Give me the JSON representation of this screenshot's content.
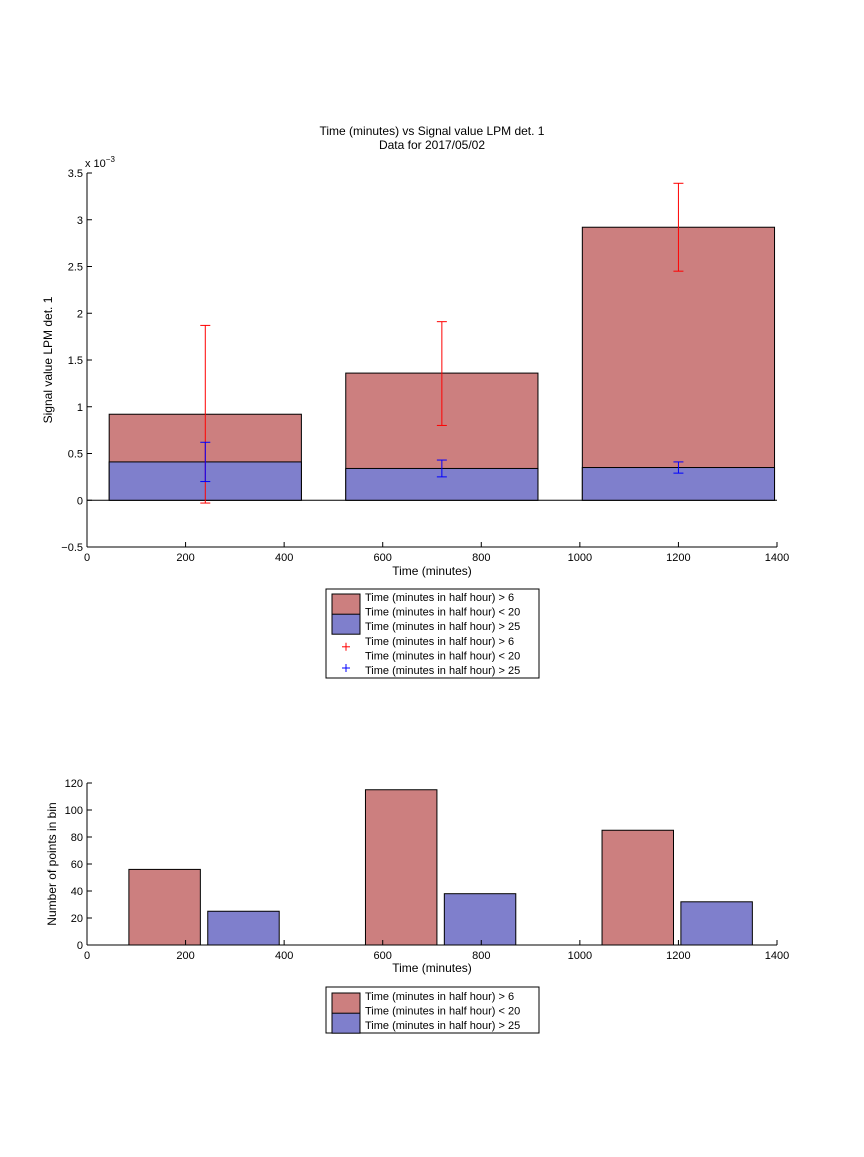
{
  "chart_data": [
    {
      "type": "bar",
      "title": "Time (minutes) vs Signal value LPM det. 1",
      "subtitle": "Data for 2017/05/02",
      "xlabel": "Time (minutes)",
      "ylabel": "Signal value LPM det. 1",
      "exponent_label": "x 10",
      "exponent_power": "−3",
      "xlim": [
        0,
        1400
      ],
      "ylim": [
        -0.5,
        3.5
      ],
      "y_scale_factor": 0.001,
      "xticks": [
        0,
        200,
        400,
        600,
        800,
        1000,
        1200,
        1400
      ],
      "yticks": [
        -0.5,
        0,
        0.5,
        1,
        1.5,
        2,
        2.5,
        3,
        3.5
      ],
      "ytick_labels": [
        "−0.5",
        "0",
        "0.5",
        "1",
        "1.5",
        "2",
        "2.5",
        "3",
        "3.5"
      ],
      "bins": [
        {
          "x_start": 45,
          "x_end": 435
        },
        {
          "x_start": 525,
          "x_end": 915
        },
        {
          "x_start": 1005,
          "x_end": 1395
        }
      ],
      "series": [
        {
          "name": "Time (minutes in half hour) > 6\nTime (minutes in half hour) < 20",
          "color": "#cc7f7f",
          "values": [
            0.92,
            1.36,
            2.92
          ]
        },
        {
          "name": "Time (minutes in half hour) > 25",
          "color": "#7f7fcc",
          "values": [
            0.41,
            0.34,
            0.35
          ]
        }
      ],
      "errorbars": [
        {
          "color": "#ff0000",
          "points": [
            {
              "x": 240,
              "y": 0.92,
              "low": -0.03,
              "high": 1.87
            },
            {
              "x": 720,
              "y": 1.36,
              "low": 0.8,
              "high": 1.91
            },
            {
              "x": 1200,
              "y": 2.92,
              "low": 2.45,
              "high": 3.39
            }
          ]
        },
        {
          "color": "#0000ff",
          "points": [
            {
              "x": 240,
              "y": 0.41,
              "low": 0.2,
              "high": 0.62
            },
            {
              "x": 720,
              "y": 0.34,
              "low": 0.25,
              "high": 0.43
            },
            {
              "x": 1200,
              "y": 0.35,
              "low": 0.29,
              "high": 0.41
            }
          ]
        }
      ],
      "legend": {
        "placement": "below",
        "entries": [
          {
            "type": "patch",
            "color": "#cc7f7f",
            "lines": [
              "Time (minutes in half hour) > 6",
              "Time (minutes in half hour) < 20"
            ]
          },
          {
            "type": "patch",
            "color": "#7f7fcc",
            "lines": [
              "Time (minutes in half hour) > 25"
            ]
          },
          {
            "type": "marker",
            "color": "#ff0000",
            "lines": [
              "Time (minutes in half hour) > 6",
              "Time (minutes in half hour) < 20"
            ]
          },
          {
            "type": "marker",
            "color": "#0000ff",
            "lines": [
              "Time (minutes in half hour) > 25"
            ]
          }
        ]
      }
    },
    {
      "type": "bar",
      "xlabel": "Time (minutes)",
      "ylabel": "Number of points in bin",
      "xlim": [
        0,
        1400
      ],
      "ylim": [
        0,
        120
      ],
      "xticks": [
        0,
        200,
        400,
        600,
        800,
        1000,
        1200,
        1400
      ],
      "yticks": [
        0,
        20,
        40,
        60,
        80,
        100,
        120
      ],
      "ytick_labels": [
        "0",
        "20",
        "40",
        "60",
        "80",
        "100",
        "120"
      ],
      "bars": [
        {
          "series": 0,
          "x_start": 85,
          "x_end": 230,
          "value": 56
        },
        {
          "series": 1,
          "x_start": 245,
          "x_end": 390,
          "value": 25
        },
        {
          "series": 0,
          "x_start": 565,
          "x_end": 710,
          "value": 115
        },
        {
          "series": 1,
          "x_start": 725,
          "x_end": 870,
          "value": 38
        },
        {
          "series": 0,
          "x_start": 1045,
          "x_end": 1190,
          "value": 85
        },
        {
          "series": 1,
          "x_start": 1205,
          "x_end": 1350,
          "value": 32
        }
      ],
      "series": [
        {
          "name": "Time (minutes in half hour) > 6\nTime (minutes in half hour) < 20",
          "color": "#cc7f7f"
        },
        {
          "name": "Time (minutes in half hour) > 25",
          "color": "#7f7fcc"
        }
      ],
      "legend": {
        "placement": "below",
        "entries": [
          {
            "type": "patch",
            "color": "#cc7f7f",
            "lines": [
              "Time (minutes in half hour) > 6",
              "Time (minutes in half hour) < 20"
            ]
          },
          {
            "type": "patch",
            "color": "#7f7fcc",
            "lines": [
              "Time (minutes in half hour) > 25"
            ]
          }
        ]
      }
    }
  ]
}
